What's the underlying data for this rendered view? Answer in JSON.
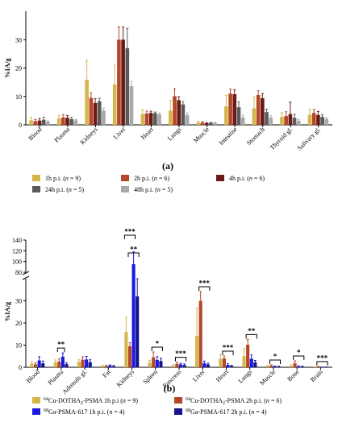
{
  "chart_data": [
    {
      "type": "bar",
      "panel_label": "(a)",
      "ylabel": "%IA/g",
      "ylim": [
        0,
        40
      ],
      "yticks": [
        0,
        10,
        20,
        30
      ],
      "categories": [
        "Blood",
        "Plasma",
        "Kidneys",
        "Liver",
        "Heart",
        "Lungs",
        "Muscle",
        "Intestine",
        "Stomach",
        "Thyroid gl.",
        "Salivary gl."
      ],
      "series": [
        {
          "name": "1h p.i. (n = 9)",
          "color": "#d4b64a",
          "values": [
            1.6,
            2.3,
            15.9,
            14.2,
            3.8,
            5.0,
            0.8,
            6.5,
            5.8,
            2.8,
            3.5
          ],
          "errors": [
            1.0,
            1.0,
            6.8,
            6.8,
            1.5,
            3.6,
            0.4,
            3.9,
            4.0,
            1.5,
            2.0
          ]
        },
        {
          "name": "2h p.i. (n = 6)",
          "color": "#b5462a",
          "values": [
            1.3,
            2.6,
            9.5,
            30.0,
            4.0,
            10.1,
            0.8,
            11.0,
            10.5,
            3.1,
            4.2
          ],
          "errors": [
            0.6,
            1.0,
            1.8,
            4.5,
            0.8,
            2.6,
            0.3,
            1.6,
            1.5,
            1.5,
            1.2
          ]
        },
        {
          "name": "4h p.i. (n = 6)",
          "color": "#6b1a14",
          "values": [
            1.5,
            2.5,
            7.7,
            30.0,
            4.2,
            8.7,
            0.6,
            10.8,
            9.4,
            3.8,
            3.5
          ],
          "errors": [
            0.7,
            0.8,
            1.5,
            4.5,
            0.6,
            1.2,
            0.2,
            1.6,
            1.6,
            4.2,
            1.2
          ]
        },
        {
          "name": "24h p.i. (n = 5)",
          "color": "#5a5a5a",
          "values": [
            1.8,
            2.0,
            8.3,
            27.0,
            4.1,
            7.2,
            0.7,
            6.2,
            4.5,
            2.5,
            2.8
          ],
          "errors": [
            0.9,
            0.6,
            1.1,
            7.0,
            0.4,
            1.0,
            0.2,
            1.9,
            1.0,
            1.2,
            0.8
          ]
        },
        {
          "name": "48h p.i. (n = 5)",
          "color": "#a8a8a8",
          "values": [
            1.1,
            1.6,
            5.0,
            13.6,
            3.7,
            3.4,
            0.7,
            2.6,
            2.5,
            1.4,
            2.0
          ],
          "errors": [
            0.3,
            0.3,
            0.9,
            1.7,
            0.5,
            0.8,
            0.2,
            0.8,
            0.7,
            0.5,
            0.5
          ]
        }
      ]
    },
    {
      "type": "bar",
      "panel_label": "(b)",
      "ylabel": "%IA/g",
      "yaxis": {
        "lower_range": [
          0,
          40
        ],
        "lower_ticks": [
          0,
          10,
          20,
          30
        ],
        "upper_range": [
          80,
          140
        ],
        "upper_ticks": [
          80,
          100,
          120,
          140
        ],
        "break": true
      },
      "categories": [
        "Blood",
        "Plasma",
        "Adrenals gl.",
        "Fat",
        "Kidneys",
        "Spleen",
        "Pancreas",
        "Liver",
        "Heart",
        "Lungs",
        "Muscle",
        "Bone",
        "Brain"
      ],
      "series": [
        {
          "name": "64Cu-DOTHA2-PSMA 1h p.i (n = 9)",
          "color": "#d4b64a",
          "values": [
            1.6,
            2.3,
            2.4,
            0.6,
            15.9,
            2.1,
            0.8,
            14.2,
            3.8,
            5.0,
            0.6,
            0.7,
            0.2
          ],
          "errors": [
            0.9,
            1.0,
            1.0,
            0.3,
            6.8,
            1.0,
            0.4,
            12.5,
            2.0,
            3.5,
            0.3,
            0.4,
            0.1
          ]
        },
        {
          "name": "64Cu-DOTHA2-PSMA 2h p.i. (n = 6)",
          "color": "#b5462a",
          "values": [
            1.3,
            2.6,
            3.4,
            0.6,
            9.5,
            4.5,
            1.6,
            30.0,
            4.0,
            10.2,
            0.8,
            1.8,
            0.3
          ],
          "errors": [
            0.7,
            1.2,
            1.3,
            0.3,
            1.6,
            2.4,
            0.7,
            4.2,
            1.1,
            2.4,
            0.3,
            1.1,
            0.1
          ]
        },
        {
          "name": "68Ga-PSMA-617 1h p.i. (n = 4)",
          "color": "#1818e0",
          "values": [
            3.1,
            4.8,
            3.5,
            0.8,
            95.0,
            3.3,
            1.3,
            1.8,
            1.1,
            3.9,
            0.4,
            0.4,
            0.1
          ],
          "errors": [
            1.7,
            1.7,
            1.4,
            0.3,
            23.0,
            1.5,
            0.5,
            1.0,
            0.6,
            1.7,
            0.2,
            0.3,
            0.05
          ]
        },
        {
          "name": "68Ga-PSMA-617 2h p.i. (n = 4)",
          "color": "#14148c",
          "values": [
            1.8,
            1.4,
            2.3,
            0.5,
            32.0,
            2.8,
            1.0,
            1.3,
            0.6,
            2.2,
            0.3,
            0.3,
            0.1
          ],
          "errors": [
            1.0,
            0.6,
            1.1,
            0.3,
            8.0,
            1.3,
            0.5,
            0.6,
            0.3,
            0.9,
            0.2,
            0.2,
            0.05
          ]
        }
      ],
      "annotations": [
        {
          "category": "Plasma",
          "pair": [
            "2h",
            "1h"
          ],
          "text": "**"
        },
        {
          "category": "Kidneys",
          "pair": [
            "1h",
            "1h"
          ],
          "text": "***"
        },
        {
          "category": "Kidneys",
          "pair": [
            "2h",
            "2h"
          ],
          "text": "**"
        },
        {
          "category": "Spleen",
          "pair": [
            "2h",
            "2h"
          ],
          "text": "*"
        },
        {
          "category": "Pancreas",
          "pair": [
            "2h",
            "2h"
          ],
          "text": "***"
        },
        {
          "category": "Liver",
          "pair": [
            "2h",
            "2h"
          ],
          "text": "***"
        },
        {
          "category": "Heart",
          "pair": [
            "2h",
            "2h"
          ],
          "text": "***"
        },
        {
          "category": "Lungs",
          "pair": [
            "2h",
            "2h"
          ],
          "text": "**"
        },
        {
          "category": "Muscle",
          "pair": [
            "2h",
            "2h"
          ],
          "text": "*"
        },
        {
          "category": "Bone",
          "pair": [
            "2h",
            "2h"
          ],
          "text": "*"
        },
        {
          "category": "Brain",
          "pair": [
            "2h",
            "2h"
          ],
          "text": "***"
        }
      ]
    }
  ],
  "legend_b": [
    {
      "sup": "64",
      "main": "Cu-DOTHA",
      "sub": "2",
      "tail": "-PSMA 1h p.i (",
      "n": "9"
    },
    {
      "sup": "64",
      "main": "Cu-DOTHA",
      "sub": "2",
      "tail": "-PSMA 2h p.i. (",
      "n": "6"
    },
    {
      "sup": "68",
      "main": "Ga-PSMA-617 1h p.i. (",
      "sub": "",
      "tail": "",
      "n": "4"
    },
    {
      "sup": "68",
      "main": "Ga-PSMA-617 2h p.i. (",
      "sub": "",
      "tail": "",
      "n": "4"
    }
  ]
}
